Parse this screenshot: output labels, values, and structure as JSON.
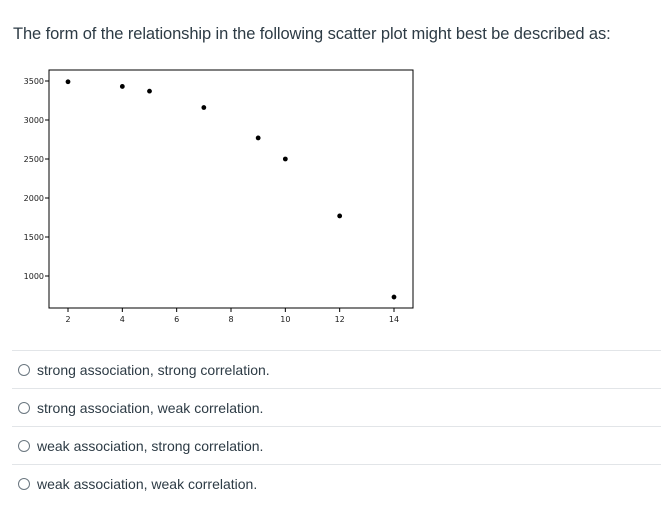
{
  "question": {
    "text": "The form of the relationship in the following scatter plot might best be described as:"
  },
  "chart_data": {
    "type": "scatter",
    "title": "",
    "xlabel": "",
    "ylabel": "",
    "x": [
      2,
      4,
      5,
      7,
      9,
      10,
      12,
      14
    ],
    "y": [
      3490,
      3430,
      3370,
      3160,
      2770,
      2500,
      1770,
      730
    ],
    "xlim": [
      1.3,
      14.7
    ],
    "ylim": [
      600,
      3650
    ],
    "xticks": [
      2,
      4,
      6,
      8,
      10,
      12,
      14
    ],
    "yticks": [
      1000,
      1500,
      2000,
      2500,
      3000,
      3500
    ],
    "grid": false,
    "legend": null,
    "marker_color": "#000000"
  },
  "options": [
    {
      "label": "strong association, strong correlation.",
      "selected": false
    },
    {
      "label": "strong association, weak correlation.",
      "selected": false
    },
    {
      "label": "weak association, strong correlation.",
      "selected": false
    },
    {
      "label": "weak association, weak correlation.",
      "selected": false
    }
  ]
}
